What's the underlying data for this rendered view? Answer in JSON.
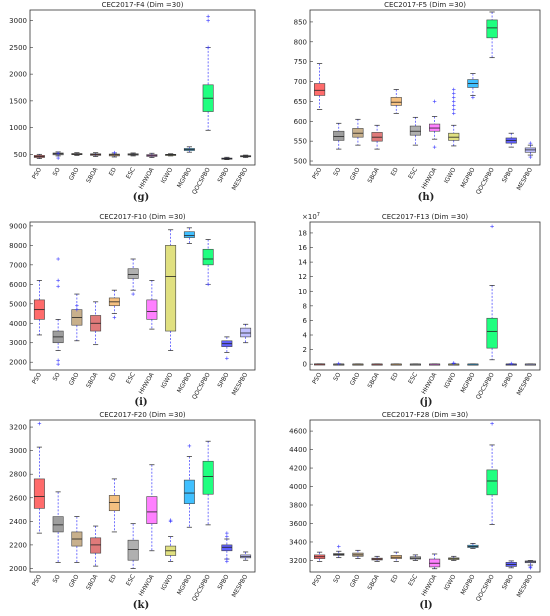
{
  "chart_data": [
    {
      "type": "box",
      "title": "CEC2017-F4 (Dim =30)",
      "panel_label": "(g)",
      "y_ticks": [
        "500",
        "1000",
        "1500",
        "2000",
        "2500",
        "3000"
      ],
      "ylim": [
        300,
        3200
      ],
      "categories": [
        "PSO",
        "SO",
        "GRO",
        "SBOA",
        "ED",
        "ESC",
        "HHWOA",
        "IGWO",
        "MGPBO",
        "QOCSPBO",
        "SPBO",
        "MESPBO"
      ],
      "colors": [
        "#ff6b6b",
        "#9e9e9e",
        "#c8b08c",
        "#e07a7a",
        "#f5c080",
        "#b0b0b0",
        "#ff80ff",
        "#e0e080",
        "#40c0ff",
        "#20ff80",
        "#6060ff",
        "#c0c0ff"
      ],
      "boxes": [
        {
          "min": 420,
          "q1": 440,
          "median": 460,
          "q3": 480,
          "max": 500,
          "outliers": []
        },
        {
          "min": 470,
          "q1": 490,
          "median": 510,
          "q3": 525,
          "max": 545,
          "outliers": [
            430,
            520
          ]
        },
        {
          "min": 480,
          "q1": 495,
          "median": 505,
          "q3": 515,
          "max": 530,
          "outliers": []
        },
        {
          "min": 460,
          "q1": 480,
          "median": 495,
          "q3": 510,
          "max": 530,
          "outliers": []
        },
        {
          "min": 450,
          "q1": 470,
          "median": 490,
          "q3": 505,
          "max": 525,
          "outliers": [
            530
          ]
        },
        {
          "min": 470,
          "q1": 485,
          "median": 500,
          "q3": 510,
          "max": 525,
          "outliers": []
        },
        {
          "min": 440,
          "q1": 460,
          "median": 475,
          "q3": 495,
          "max": 520,
          "outliers": []
        },
        {
          "min": 470,
          "q1": 480,
          "median": 490,
          "q3": 500,
          "max": 510,
          "outliers": []
        },
        {
          "min": 540,
          "q1": 570,
          "median": 590,
          "q3": 610,
          "max": 640,
          "outliers": []
        },
        {
          "min": 950,
          "q1": 1300,
          "median": 1550,
          "q3": 1800,
          "max": 2500,
          "outliers": [
            3000,
            3080,
            2500
          ]
        },
        {
          "min": 400,
          "q1": 410,
          "median": 420,
          "q3": 430,
          "max": 445,
          "outliers": []
        },
        {
          "min": 440,
          "q1": 455,
          "median": 465,
          "q3": 475,
          "max": 485,
          "outliers": []
        }
      ]
    },
    {
      "type": "box",
      "title": "CEC2017-F5 (Dim =30)",
      "panel_label": "(h)",
      "y_ticks": [
        "500",
        "550",
        "600",
        "650",
        "700",
        "750",
        "800",
        "850"
      ],
      "ylim": [
        490,
        880
      ],
      "categories": [
        "PSO",
        "SO",
        "GRO",
        "SBOA",
        "ED",
        "ESC",
        "HHWOA",
        "IGWO",
        "MGPBO",
        "QOCSPBO",
        "SPBO",
        "MESPBO"
      ],
      "colors": [
        "#ff6b6b",
        "#9e9e9e",
        "#c8b08c",
        "#e07a7a",
        "#f5c080",
        "#b0b0b0",
        "#ff80ff",
        "#e0e080",
        "#40c0ff",
        "#20ff80",
        "#6060ff",
        "#c0c0ff"
      ],
      "boxes": [
        {
          "min": 630,
          "q1": 665,
          "median": 678,
          "q3": 695,
          "max": 745,
          "outliers": []
        },
        {
          "min": 530,
          "q1": 552,
          "median": 562,
          "q3": 575,
          "max": 595,
          "outliers": []
        },
        {
          "min": 540,
          "q1": 560,
          "median": 570,
          "q3": 582,
          "max": 605,
          "outliers": []
        },
        {
          "min": 530,
          "q1": 550,
          "median": 560,
          "q3": 572,
          "max": 590,
          "outliers": []
        },
        {
          "min": 620,
          "q1": 640,
          "median": 648,
          "q3": 660,
          "max": 680,
          "outliers": []
        },
        {
          "min": 540,
          "q1": 565,
          "median": 575,
          "q3": 588,
          "max": 610,
          "outliers": []
        },
        {
          "min": 555,
          "q1": 575,
          "median": 583,
          "q3": 593,
          "max": 612,
          "outliers": [
            535,
            650
          ]
        },
        {
          "min": 538,
          "q1": 552,
          "median": 560,
          "q3": 570,
          "max": 590,
          "outliers": [
            620,
            630,
            640,
            650,
            660,
            670,
            680
          ]
        },
        {
          "min": 665,
          "q1": 685,
          "median": 695,
          "q3": 705,
          "max": 720,
          "outliers": [
            660
          ]
        },
        {
          "min": 760,
          "q1": 810,
          "median": 835,
          "q3": 855,
          "max": 875,
          "outliers": []
        },
        {
          "min": 535,
          "q1": 545,
          "median": 552,
          "q3": 558,
          "max": 570,
          "outliers": []
        },
        {
          "min": 515,
          "q1": 522,
          "median": 528,
          "q3": 533,
          "max": 540,
          "outliers": [
            510,
            545
          ]
        }
      ]
    },
    {
      "type": "box",
      "title": "CEC2017-F10 (Dim =30)",
      "panel_label": "(i)",
      "y_ticks": [
        "2000",
        "3000",
        "4000",
        "5000",
        "6000",
        "7000",
        "8000",
        "9000"
      ],
      "ylim": [
        1600,
        9200
      ],
      "categories": [
        "PSO",
        "SO",
        "GRO",
        "SBOA",
        "ED",
        "ESC",
        "HHWOA",
        "IGWO",
        "MGPBO",
        "QOCSPBO",
        "SPBO",
        "MESPBO"
      ],
      "colors": [
        "#ff6b6b",
        "#9e9e9e",
        "#c8b08c",
        "#e07a7a",
        "#f5c080",
        "#b0b0b0",
        "#ff80ff",
        "#e0e080",
        "#40c0ff",
        "#20ff80",
        "#6060ff",
        "#c0c0ff"
      ],
      "boxes": [
        {
          "min": 3400,
          "q1": 4200,
          "median": 4700,
          "q3": 5200,
          "max": 6200,
          "outliers": []
        },
        {
          "min": 2600,
          "q1": 3000,
          "median": 3300,
          "q3": 3600,
          "max": 4200,
          "outliers": [
            1900,
            2100,
            5900,
            6200,
            7300
          ]
        },
        {
          "min": 3100,
          "q1": 3900,
          "median": 4300,
          "q3": 4700,
          "max": 5500,
          "outliers": [
            4700,
            4900
          ]
        },
        {
          "min": 2900,
          "q1": 3600,
          "median": 4000,
          "q3": 4400,
          "max": 5100,
          "outliers": []
        },
        {
          "min": 4500,
          "q1": 4900,
          "median": 5100,
          "q3": 5300,
          "max": 5700,
          "outliers": [
            4300
          ]
        },
        {
          "min": 5700,
          "q1": 6300,
          "median": 6500,
          "q3": 6800,
          "max": 7300,
          "outliers": [
            5500
          ]
        },
        {
          "min": 3700,
          "q1": 4200,
          "median": 4600,
          "q3": 5200,
          "max": 6200,
          "outliers": []
        },
        {
          "min": 2600,
          "q1": 3600,
          "median": 6400,
          "q3": 8000,
          "max": 8800,
          "outliers": []
        },
        {
          "min": 8100,
          "q1": 8400,
          "median": 8500,
          "q3": 8700,
          "max": 8900,
          "outliers": []
        },
        {
          "min": 6000,
          "q1": 7000,
          "median": 7300,
          "q3": 7800,
          "max": 8300,
          "outliers": [
            6000
          ]
        },
        {
          "min": 2500,
          "q1": 2800,
          "median": 2950,
          "q3": 3100,
          "max": 3300,
          "outliers": [
            2200
          ]
        },
        {
          "min": 3000,
          "q1": 3300,
          "median": 3500,
          "q3": 3750,
          "max": 3950,
          "outliers": []
        }
      ]
    },
    {
      "type": "box",
      "title": "CEC2017-F13 (Dim =30)",
      "panel_label": "(j)",
      "y_exponent": "×10",
      "y_exponent_power": "7",
      "y_ticks": [
        "0",
        "2",
        "4",
        "6",
        "8",
        "10",
        "12",
        "14",
        "16",
        "18"
      ],
      "ylim": [
        -0.8,
        19.5
      ],
      "categories": [
        "PSO",
        "SO",
        "GRO",
        "SBOA",
        "ED",
        "ESC",
        "HHWOA",
        "IGWO",
        "MGPBO",
        "QOCSPBO",
        "SPBO",
        "MESPBO"
      ],
      "colors": [
        "#ff6b6b",
        "#9e9e9e",
        "#c8b08c",
        "#e07a7a",
        "#f5c080",
        "#b0b0b0",
        "#ff80ff",
        "#e0e080",
        "#40c0ff",
        "#20ff80",
        "#6060ff",
        "#c0c0ff"
      ],
      "boxes": [
        {
          "min": 0,
          "q1": 0,
          "median": 0.02,
          "q3": 0.04,
          "max": 0.05,
          "outliers": []
        },
        {
          "min": 0,
          "q1": 0,
          "median": 0.01,
          "q3": 0.02,
          "max": 0.04,
          "outliers": [
            0.08
          ]
        },
        {
          "min": 0,
          "q1": 0,
          "median": 0.01,
          "q3": 0.02,
          "max": 0.03,
          "outliers": []
        },
        {
          "min": 0,
          "q1": 0,
          "median": 0.01,
          "q3": 0.02,
          "max": 0.03,
          "outliers": []
        },
        {
          "min": 0,
          "q1": 0,
          "median": 0.01,
          "q3": 0.02,
          "max": 0.03,
          "outliers": []
        },
        {
          "min": 0,
          "q1": 0,
          "median": 0.01,
          "q3": 0.02,
          "max": 0.03,
          "outliers": []
        },
        {
          "min": 0,
          "q1": 0,
          "median": 0.01,
          "q3": 0.02,
          "max": 0.03,
          "outliers": []
        },
        {
          "min": 0,
          "q1": 0,
          "median": 0.01,
          "q3": 0.02,
          "max": 0.05,
          "outliers": [
            0.1,
            0.15
          ]
        },
        {
          "min": 0,
          "q1": 0,
          "median": 0.01,
          "q3": 0.02,
          "max": 0.03,
          "outliers": []
        },
        {
          "min": 0.6,
          "q1": 2.2,
          "median": 4.5,
          "q3": 6.3,
          "max": 10.8,
          "outliers": [
            18.9
          ]
        },
        {
          "min": 0,
          "q1": 0,
          "median": 0.01,
          "q3": 0.02,
          "max": 0.04,
          "outliers": [
            0.08
          ]
        },
        {
          "min": 0,
          "q1": 0,
          "median": 0.01,
          "q3": 0.02,
          "max": 0.03,
          "outliers": []
        }
      ]
    },
    {
      "type": "box",
      "title": "CEC2017-F20 (Dim =30)",
      "panel_label": "(k)",
      "y_ticks": [
        "2000",
        "2200",
        "2400",
        "2600",
        "2800",
        "3000",
        "3200"
      ],
      "ylim": [
        1970,
        3260
      ],
      "categories": [
        "PSO",
        "SO",
        "GRO",
        "SBOA",
        "ED",
        "ESC",
        "HHWOA",
        "IGWO",
        "MGPBO",
        "QOCSPBO",
        "SPBO",
        "MESPBO"
      ],
      "colors": [
        "#ff6b6b",
        "#9e9e9e",
        "#c8b08c",
        "#e07a7a",
        "#f5c080",
        "#b0b0b0",
        "#ff80ff",
        "#e0e080",
        "#40c0ff",
        "#20ff80",
        "#6060ff",
        "#c0c0ff"
      ],
      "boxes": [
        {
          "min": 2300,
          "q1": 2510,
          "median": 2610,
          "q3": 2760,
          "max": 3030,
          "outliers": [
            3230
          ]
        },
        {
          "min": 2050,
          "q1": 2310,
          "median": 2370,
          "q3": 2440,
          "max": 2650,
          "outliers": []
        },
        {
          "min": 2050,
          "q1": 2190,
          "median": 2250,
          "q3": 2310,
          "max": 2440,
          "outliers": []
        },
        {
          "min": 2020,
          "q1": 2130,
          "median": 2200,
          "q3": 2260,
          "max": 2360,
          "outliers": []
        },
        {
          "min": 2310,
          "q1": 2490,
          "median": 2560,
          "q3": 2620,
          "max": 2760,
          "outliers": []
        },
        {
          "min": 2000,
          "q1": 2070,
          "median": 2160,
          "q3": 2240,
          "max": 2380,
          "outliers": []
        },
        {
          "min": 2150,
          "q1": 2380,
          "median": 2480,
          "q3": 2610,
          "max": 2880,
          "outliers": []
        },
        {
          "min": 2060,
          "q1": 2110,
          "median": 2150,
          "q3": 2190,
          "max": 2270,
          "outliers": [
            2400,
            2410
          ]
        },
        {
          "min": 2350,
          "q1": 2550,
          "median": 2640,
          "q3": 2750,
          "max": 2950,
          "outliers": [
            3040
          ]
        },
        {
          "min": 2370,
          "q1": 2630,
          "median": 2780,
          "q3": 2910,
          "max": 3080,
          "outliers": []
        },
        {
          "min": 2080,
          "q1": 2150,
          "median": 2180,
          "q3": 2200,
          "max": 2250,
          "outliers": [
            2060,
            2080,
            2270,
            2300
          ]
        },
        {
          "min": 2070,
          "q1": 2090,
          "median": 2100,
          "q3": 2115,
          "max": 2140,
          "outliers": []
        }
      ]
    },
    {
      "type": "box",
      "title": "CEC2017-F28 (Dim =30)",
      "panel_label": "(l)",
      "y_ticks": [
        "3200",
        "3400",
        "3600",
        "3800",
        "4000",
        "4200",
        "4400",
        "4600"
      ],
      "ylim": [
        3075,
        4720
      ],
      "categories": [
        "PSO",
        "SO",
        "GRO",
        "SBOA",
        "ED",
        "ESC",
        "HHWOA",
        "IGWO",
        "MGPBO",
        "QOCSPBO",
        "SPBO",
        "MESPBO"
      ],
      "colors": [
        "#ff6b6b",
        "#9e9e9e",
        "#c8b08c",
        "#e07a7a",
        "#f5c080",
        "#b0b0b0",
        "#ff80ff",
        "#e0e080",
        "#40c0ff",
        "#20ff80",
        "#6060ff",
        "#c0c0ff"
      ],
      "boxes": [
        {
          "min": 3190,
          "q1": 3220,
          "median": 3240,
          "q3": 3260,
          "max": 3290,
          "outliers": []
        },
        {
          "min": 3230,
          "q1": 3255,
          "median": 3265,
          "q3": 3275,
          "max": 3300,
          "outliers": [
            3350
          ]
        },
        {
          "min": 3220,
          "q1": 3245,
          "median": 3260,
          "q3": 3280,
          "max": 3310,
          "outliers": []
        },
        {
          "min": 3190,
          "q1": 3205,
          "median": 3215,
          "q3": 3225,
          "max": 3245,
          "outliers": []
        },
        {
          "min": 3190,
          "q1": 3220,
          "median": 3235,
          "q3": 3255,
          "max": 3290,
          "outliers": []
        },
        {
          "min": 3200,
          "q1": 3215,
          "median": 3225,
          "q3": 3240,
          "max": 3260,
          "outliers": []
        },
        {
          "min": 3110,
          "q1": 3130,
          "median": 3170,
          "q3": 3215,
          "max": 3270,
          "outliers": []
        },
        {
          "min": 3200,
          "q1": 3210,
          "median": 3218,
          "q3": 3228,
          "max": 3245,
          "outliers": []
        },
        {
          "min": 3330,
          "q1": 3340,
          "median": 3350,
          "q3": 3365,
          "max": 3385,
          "outliers": []
        },
        {
          "min": 3590,
          "q1": 3910,
          "median": 4060,
          "q3": 4180,
          "max": 4450,
          "outliers": [
            4680
          ]
        },
        {
          "min": 3120,
          "q1": 3135,
          "median": 3155,
          "q3": 3180,
          "max": 3195,
          "outliers": []
        },
        {
          "min": 3150,
          "q1": 3175,
          "median": 3185,
          "q3": 3195,
          "max": 3200,
          "outliers": [
            3130,
            3120
          ]
        }
      ]
    }
  ]
}
